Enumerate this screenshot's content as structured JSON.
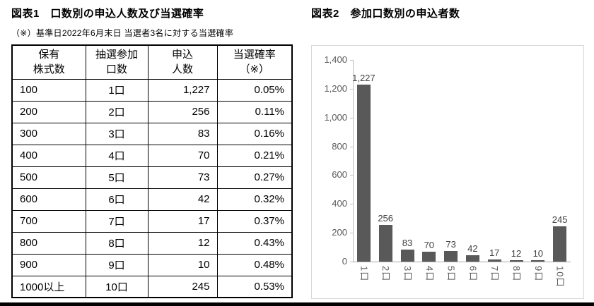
{
  "figure1": {
    "title": "図表1　口数別の申込人数及び当選確率",
    "note": "（※）基準日2022年6月末日 当選者3名に対する当選確率",
    "table": {
      "headers": [
        "保有\n株式数",
        "抽選参加\n口数",
        "申込\n人数",
        "当選確率\n（※）"
      ],
      "rows": [
        [
          "100",
          "1口",
          "1,227",
          "0.05%"
        ],
        [
          "200",
          "2口",
          "256",
          "0.11%"
        ],
        [
          "300",
          "3口",
          "83",
          "0.16%"
        ],
        [
          "400",
          "4口",
          "70",
          "0.21%"
        ],
        [
          "500",
          "5口",
          "73",
          "0.27%"
        ],
        [
          "600",
          "6口",
          "42",
          "0.32%"
        ],
        [
          "700",
          "7口",
          "17",
          "0.37%"
        ],
        [
          "800",
          "8口",
          "12",
          "0.43%"
        ],
        [
          "900",
          "9口",
          "10",
          "0.48%"
        ],
        [
          "1000以上",
          "10口",
          "245",
          "0.53%"
        ]
      ]
    }
  },
  "figure2": {
    "title": "図表2　参加口数別の申込者数"
  },
  "chart_data": {
    "type": "bar",
    "title": "図表2　参加口数別の申込者数",
    "categories": [
      "1口",
      "2口",
      "3口",
      "4口",
      "5口",
      "6口",
      "7口",
      "8口",
      "9口",
      "10口"
    ],
    "values": [
      1227,
      256,
      83,
      70,
      73,
      42,
      17,
      12,
      10,
      245
    ],
    "data_labels": [
      "1,227",
      "256",
      "83",
      "70",
      "73",
      "42",
      "17",
      "12",
      "10",
      "245"
    ],
    "xlabel": "",
    "ylabel": "",
    "ylim": [
      0,
      1400
    ],
    "ytick_values": [
      0,
      200,
      400,
      600,
      800,
      1000,
      1200,
      1400
    ],
    "ytick_labels": [
      "0",
      "200",
      "400",
      "600",
      "800",
      "1,000",
      "1,200",
      "1,400"
    ],
    "bar_color": "#595959",
    "grid": false,
    "legend": "none"
  }
}
